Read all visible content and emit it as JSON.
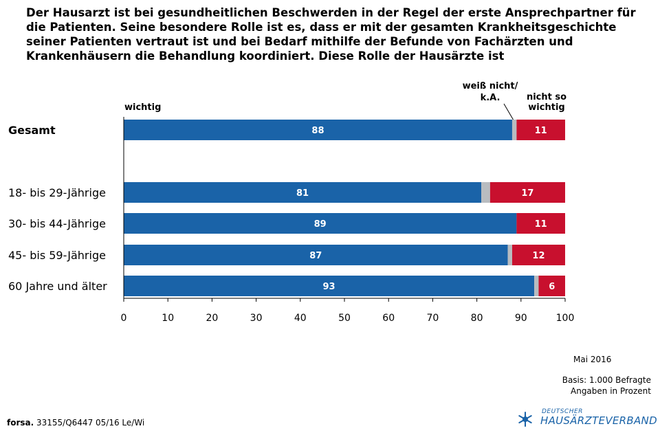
{
  "headline": "Der Hausarzt ist bei gesundheitlichen Beschwerden in der Regel der erste Ansprechpartner für die Patienten. Seine besondere Rolle ist es, dass er mit der gesamten Krankheitsgeschichte seiner Patienten vertraut ist und bei Bedarf mithilfe der Befunde von Fachärzten und Krankenhäusern die Behandlung koordiniert. Diese Rolle der Hausärzte ist",
  "footer": {
    "date": "Mai 2016",
    "basis_line1": "Basis: 1.000 Befragte",
    "basis_line2": "Angaben in Prozent",
    "source_bold": "forsa.",
    "source_rest": " 33155/Q6447 05/16 Le/Wi",
    "logo_small": "DEUTSCHER",
    "logo_big": "HAUSÄRZTEVERBAND"
  },
  "colors": {
    "wichtig": "#1a63a8",
    "weiss_nicht": "#b8bcc0",
    "nicht_so_wichtig": "#c8102e"
  },
  "chart_data": {
    "type": "bar",
    "orientation": "horizontal",
    "stacked": true,
    "title": "",
    "xlabel": "",
    "ylabel": "",
    "xlim": [
      0,
      100
    ],
    "xticks": [
      0,
      10,
      20,
      30,
      40,
      50,
      60,
      70,
      80,
      90,
      100
    ],
    "categories": [
      "Gesamt",
      "18- bis 29-Jährige",
      "30- bis 44-Jährige",
      "45- bis 59-Jährige",
      "60 Jahre und älter"
    ],
    "series": [
      {
        "name": "wichtig",
        "values": [
          88,
          81,
          89,
          87,
          93
        ],
        "labels": [
          "88",
          "81",
          "89",
          "87",
          "93"
        ]
      },
      {
        "name": "weiß nicht/ k.A.",
        "label_line1": "weiß nicht/",
        "label_line2": "k.A.",
        "values": [
          1,
          2,
          0,
          1,
          1
        ]
      },
      {
        "name": "nicht so wichtig",
        "label_line1": "nicht so",
        "label_line2": "wichtig",
        "values": [
          11,
          17,
          11,
          12,
          6
        ],
        "labels": [
          "11",
          "17",
          "11",
          "12",
          "6"
        ]
      }
    ],
    "grid": false,
    "legend": "top"
  }
}
